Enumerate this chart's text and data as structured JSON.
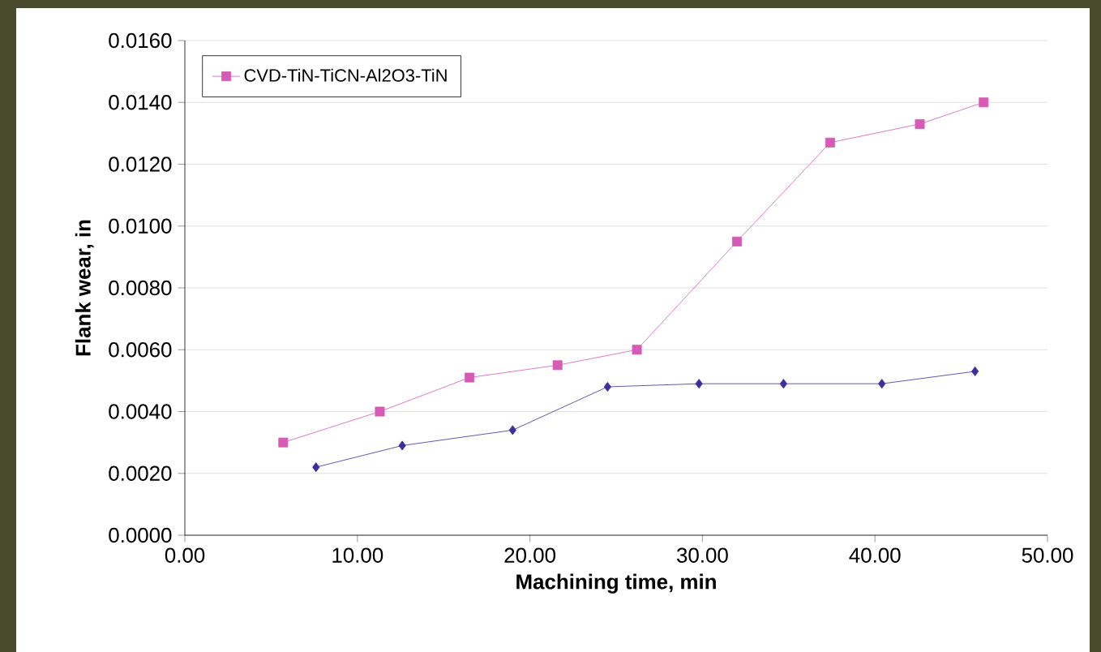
{
  "chart_data": {
    "type": "line",
    "xlabel": "Machining time, min",
    "ylabel": "Flank wear, in",
    "xlim": [
      0,
      50
    ],
    "ylim": [
      0,
      0.016
    ],
    "xticks": [
      {
        "value": 0,
        "label": "0.00"
      },
      {
        "value": 10,
        "label": "10.00"
      },
      {
        "value": 20,
        "label": "20.00"
      },
      {
        "value": 30,
        "label": "30.00"
      },
      {
        "value": 40,
        "label": "40.00"
      },
      {
        "value": 50,
        "label": "50.00"
      }
    ],
    "yticks": [
      {
        "value": 0,
        "label": "0.0000"
      },
      {
        "value": 0.002,
        "label": "0.0020"
      },
      {
        "value": 0.004,
        "label": "0.0040"
      },
      {
        "value": 0.006,
        "label": "0.0060"
      },
      {
        "value": 0.008,
        "label": "0.0080"
      },
      {
        "value": 0.01,
        "label": "0.0100"
      },
      {
        "value": 0.012,
        "label": "0.0120"
      },
      {
        "value": 0.014,
        "label": "0.0140"
      },
      {
        "value": 0.016,
        "label": "0.0160"
      }
    ],
    "grid": "y",
    "legend": "top left",
    "series": [
      {
        "color": "#3a2f9c",
        "marker": "diamond",
        "x": [
          7.6,
          12.6,
          19.0,
          24.5,
          29.8,
          34.7,
          40.4,
          45.8
        ],
        "values": [
          0.0022,
          0.0029,
          0.0034,
          0.0048,
          0.0049,
          0.0049,
          0.0049,
          0.0053
        ]
      },
      {
        "name": "CVD-TiN-TiCN-Al2O3-TiN",
        "color": "#d65bb5",
        "marker": "square",
        "x": [
          5.7,
          11.3,
          16.5,
          21.6,
          26.2,
          32.0,
          37.4,
          42.6,
          46.3
        ],
        "values": [
          0.003,
          0.004,
          0.0051,
          0.0055,
          0.006,
          0.0095,
          0.0127,
          0.0133,
          0.014
        ]
      }
    ]
  }
}
